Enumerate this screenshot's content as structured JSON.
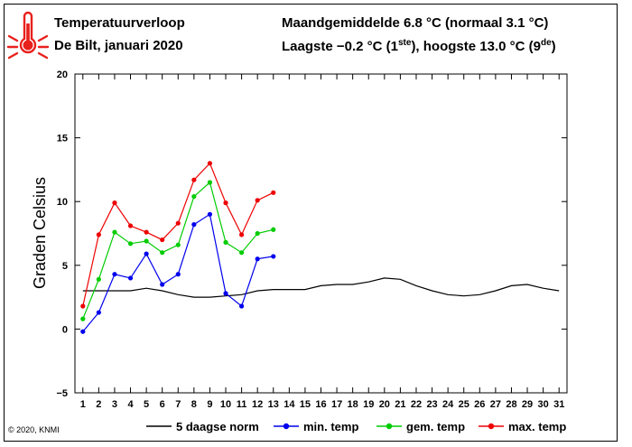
{
  "header": {
    "title": "Temperatuurverloop",
    "subtitle": "De Bilt, januari 2020",
    "monthly_avg": "Maandgemiddelde 6.8 °C (normaal 3.1 °C)",
    "extremes_pre": "Laagste −0.2 °C (1",
    "extremes_sup1": "ste",
    "extremes_mid": "), hoogste 13.0 °C (9",
    "extremes_sup2": "de",
    "extremes_post": ")"
  },
  "copyright": "© 2020, KNMI",
  "icon": "thermometer-icon",
  "chart_data": {
    "type": "line",
    "ylabel": "Graden Celsius",
    "xlabel": "",
    "ylim": [
      -5,
      20
    ],
    "xlim": [
      0.5,
      31.5
    ],
    "yticks": [
      -5,
      0,
      5,
      10,
      15,
      20
    ],
    "ytick_labels": [
      "−5",
      "0",
      "5",
      "10",
      "15",
      "20"
    ],
    "xticks": [
      1,
      2,
      3,
      4,
      5,
      6,
      7,
      8,
      9,
      10,
      11,
      12,
      13,
      14,
      15,
      16,
      17,
      18,
      19,
      20,
      21,
      22,
      23,
      24,
      25,
      26,
      27,
      28,
      29,
      30,
      31
    ],
    "grid": false,
    "legend_position": "bottom",
    "series": [
      {
        "name": "5 daagse norm",
        "color": "#000000",
        "markers": false,
        "x": [
          1,
          2,
          3,
          4,
          5,
          6,
          7,
          8,
          9,
          10,
          11,
          12,
          13,
          14,
          15,
          16,
          17,
          18,
          19,
          20,
          21,
          22,
          23,
          24,
          25,
          26,
          27,
          28,
          29,
          30,
          31
        ],
        "values": [
          3.0,
          3.0,
          3.0,
          3.0,
          3.2,
          3.0,
          2.7,
          2.5,
          2.5,
          2.6,
          2.7,
          3.0,
          3.1,
          3.1,
          3.1,
          3.4,
          3.5,
          3.5,
          3.7,
          4.0,
          3.9,
          3.4,
          3.0,
          2.7,
          2.6,
          2.7,
          3.0,
          3.4,
          3.5,
          3.2,
          3.0
        ]
      },
      {
        "name": "min. temp",
        "color": "#0000ee",
        "markers": true,
        "x": [
          1,
          2,
          3,
          4,
          5,
          6,
          7,
          8,
          9,
          10,
          11,
          12,
          13
        ],
        "values": [
          -0.2,
          1.3,
          4.3,
          4.0,
          5.9,
          3.5,
          4.3,
          8.2,
          9.0,
          2.8,
          1.8,
          5.5,
          5.7
        ]
      },
      {
        "name": "gem. temp",
        "color": "#00cc00",
        "markers": true,
        "x": [
          1,
          2,
          3,
          4,
          5,
          6,
          7,
          8,
          9,
          10,
          11,
          12,
          13
        ],
        "values": [
          0.8,
          3.9,
          7.6,
          6.7,
          6.9,
          6.0,
          6.6,
          10.4,
          11.5,
          6.8,
          6.0,
          7.5,
          7.8
        ]
      },
      {
        "name": "max. temp",
        "color": "#ee0000",
        "markers": true,
        "x": [
          1,
          2,
          3,
          4,
          5,
          6,
          7,
          8,
          9,
          10,
          11,
          12,
          13
        ],
        "values": [
          1.8,
          7.4,
          9.9,
          8.1,
          7.6,
          7.0,
          8.3,
          11.7,
          13.0,
          9.9,
          7.4,
          10.1,
          10.7
        ]
      }
    ]
  }
}
